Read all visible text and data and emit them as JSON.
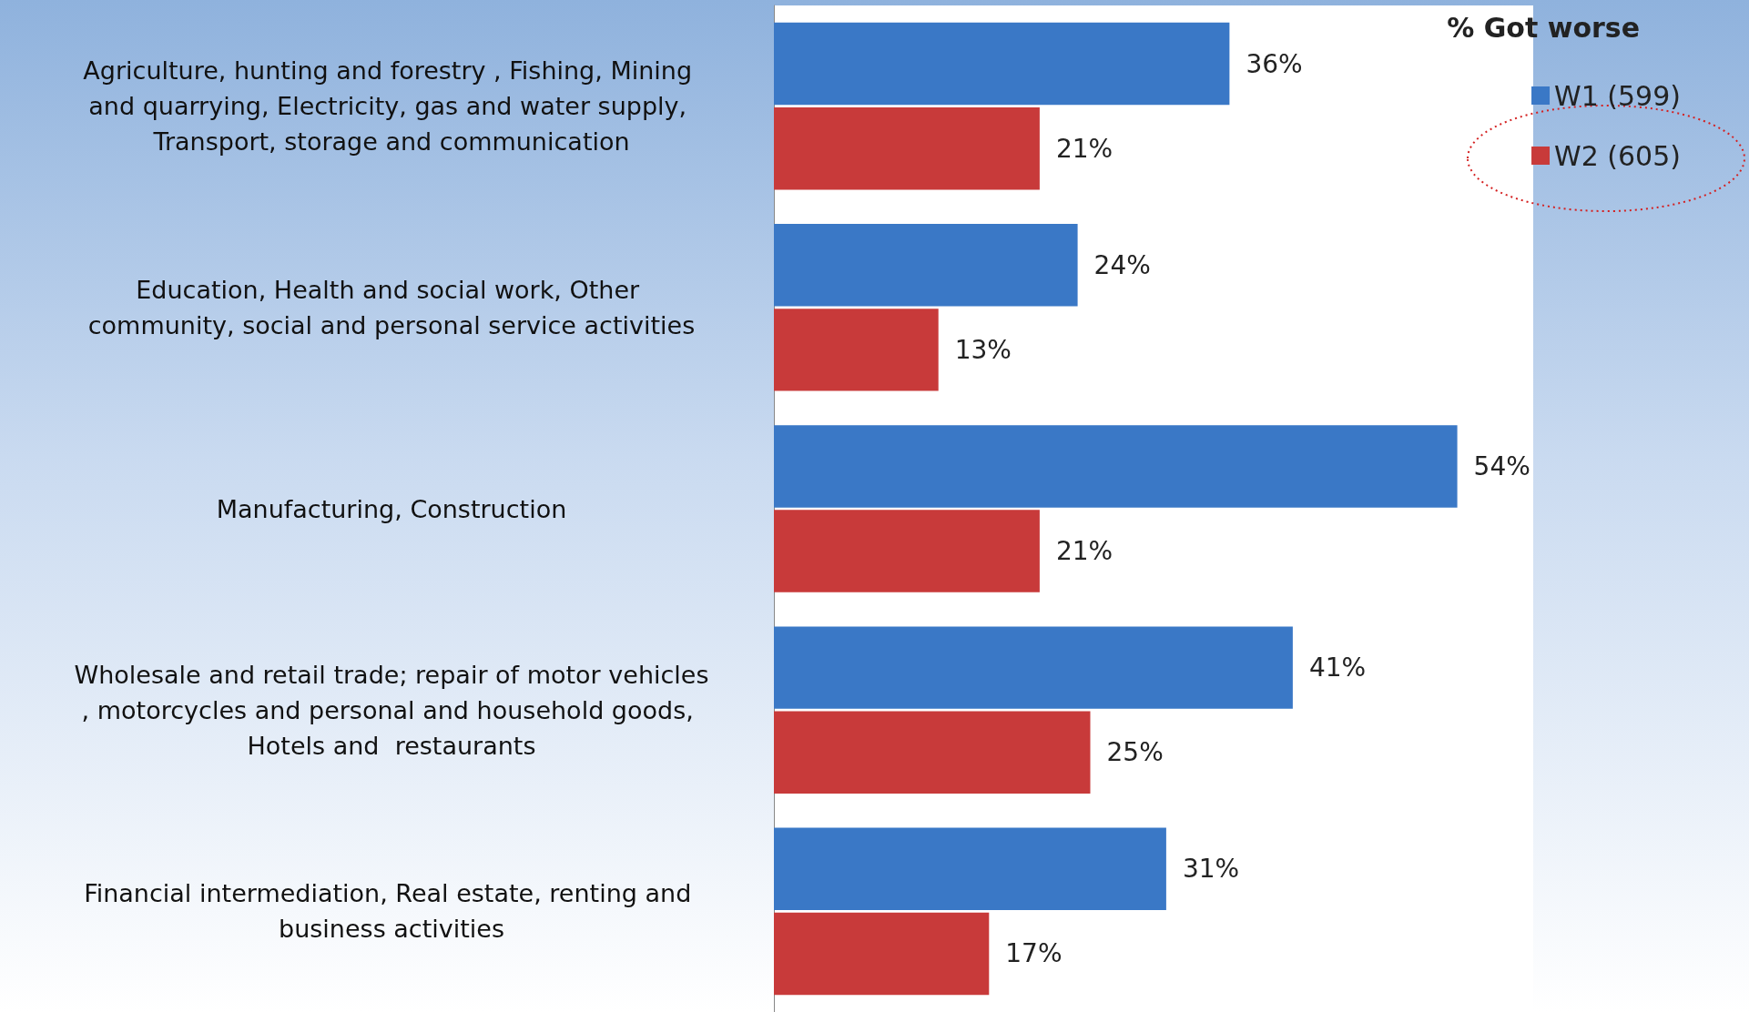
{
  "chart_data": {
    "type": "bar",
    "orientation": "horizontal",
    "title": "% Got worse",
    "categories": [
      "Agriculture, hunting and forestry , Fishing, Mining and quarrying, Electricity, gas and water supply, Transport, storage and communication",
      "Education, Health and social work, Other community, social and personal service activities",
      "Manufacturing, Construction",
      "Wholesale and retail trade; repair of motor vehicles, motorcycles and personal and household goods, Hotels and  restaurants",
      "Financial intermediation, Real estate, renting and business activities"
    ],
    "series": [
      {
        "name": "W1 (599)",
        "color": "#3a78c6",
        "values": [
          36,
          24,
          54,
          41,
          31
        ],
        "value_labels": [
          "36%",
          "24%",
          "54%",
          "41%",
          "31%"
        ]
      },
      {
        "name": "W2 (605)",
        "color": "#c83a3a",
        "values": [
          21,
          13,
          21,
          25,
          17
        ],
        "value_labels": [
          "21%",
          "13%",
          "21%",
          "25%",
          "17%"
        ]
      }
    ],
    "legend": "top right",
    "grid": false
  }
}
